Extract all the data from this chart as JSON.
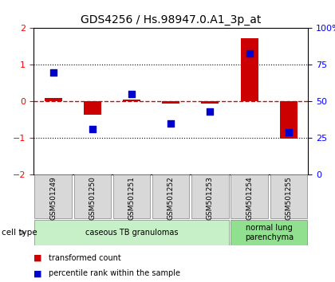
{
  "title": "GDS4256 / Hs.98947.0.A1_3p_at",
  "samples": [
    "GSM501249",
    "GSM501250",
    "GSM501251",
    "GSM501252",
    "GSM501253",
    "GSM501254",
    "GSM501255"
  ],
  "red_values": [
    0.1,
    -0.35,
    0.05,
    -0.05,
    -0.05,
    1.72,
    -1.02
  ],
  "blue_percentiles": [
    70,
    31,
    55,
    35,
    43,
    83,
    29
  ],
  "ylim_left": [
    -2,
    2
  ],
  "ylim_right": [
    0,
    100
  ],
  "yticks_left": [
    -2,
    -1,
    0,
    1,
    2
  ],
  "yticks_right": [
    0,
    25,
    50,
    75,
    100
  ],
  "ytick_labels_right": [
    "0",
    "25",
    "50",
    "75",
    "100%"
  ],
  "bar_color": "#cc0000",
  "dot_color": "#0000cc",
  "zero_line_color": "#dd0000",
  "background_color": "white",
  "sample_box_color": "#d8d8d8",
  "group1_color": "#c8f0c8",
  "group2_color": "#90e090",
  "group1_label": "caseous TB granulomas",
  "group2_label": "normal lung\nparenchyma",
  "group1_indices": [
    0,
    1,
    2,
    3,
    4
  ],
  "group2_indices": [
    5,
    6
  ],
  "cell_type_label": "cell type",
  "legend_red_label": "transformed count",
  "legend_blue_label": "percentile rank within the sample"
}
